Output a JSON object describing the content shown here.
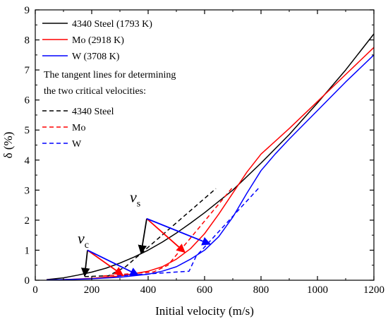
{
  "chart_data": {
    "type": "line",
    "xlabel": "Initial velocity (m/s)",
    "ylabel": "δ (%)",
    "xlim": [
      0,
      1200
    ],
    "ylim": [
      0,
      9
    ],
    "xticks": [
      0,
      200,
      400,
      600,
      800,
      1000,
      1200
    ],
    "yticks": [
      0,
      1,
      2,
      3,
      4,
      5,
      6,
      7,
      8,
      9
    ],
    "grid": false,
    "legend_position": "top-left",
    "colors": {
      "steel": "#000000",
      "mo": "#ff0000",
      "w": "#0000ff",
      "arrow_red": "#ff0000",
      "arrow_blue": "#0000ff"
    },
    "series": [
      {
        "name": "4340 Steel (1793 K)",
        "color": "#000000",
        "dash": "solid",
        "x": [
          40,
          100,
          150,
          200,
          250,
          300,
          350,
          400,
          450,
          500,
          550,
          600,
          700,
          800,
          900,
          1000,
          1100,
          1200
        ],
        "y": [
          0.02,
          0.08,
          0.17,
          0.27,
          0.4,
          0.57,
          0.77,
          1.0,
          1.27,
          1.57,
          1.9,
          2.25,
          3.0,
          3.9,
          4.85,
          5.9,
          7.0,
          8.2
        ]
      },
      {
        "name": "Mo (2918 K)",
        "color": "#ff0000",
        "dash": "solid",
        "x": [
          40,
          100,
          200,
          300,
          400,
          450,
          500,
          550,
          600,
          650,
          700,
          750,
          800,
          900,
          1000,
          1100,
          1200
        ],
        "y": [
          0.01,
          0.02,
          0.06,
          0.14,
          0.3,
          0.45,
          0.7,
          1.05,
          1.55,
          2.2,
          2.9,
          3.6,
          4.2,
          5.05,
          5.95,
          6.85,
          7.75
        ]
      },
      {
        "name": "W (3708 K)",
        "color": "#0000ff",
        "dash": "solid",
        "x": [
          40,
          100,
          200,
          300,
          400,
          450,
          500,
          550,
          600,
          650,
          700,
          750,
          800,
          850,
          900,
          1000,
          1100,
          1200
        ],
        "y": [
          0.01,
          0.02,
          0.05,
          0.1,
          0.2,
          0.3,
          0.45,
          0.7,
          1.0,
          1.45,
          2.1,
          2.9,
          3.65,
          4.2,
          4.7,
          5.65,
          6.6,
          7.5
        ]
      },
      {
        "name": "4340 Steel",
        "color": "#000000",
        "dash": "dashed",
        "x": [
          175,
          260,
          320,
          640
        ],
        "y": [
          0.12,
          0.15,
          0.45,
          3.05
        ]
      },
      {
        "name": "Mo",
        "color": "#ff0000",
        "dash": "dashed",
        "x": [
          240,
          420,
          470,
          700
        ],
        "y": [
          0.14,
          0.28,
          0.5,
          3.1
        ]
      },
      {
        "name": "W",
        "color": "#0000ff",
        "dash": "dashed",
        "x": [
          290,
          545,
          570,
          795
        ],
        "y": [
          0.14,
          0.3,
          0.8,
          3.1
        ]
      }
    ],
    "legend": {
      "entries": [
        "4340 Steel (1793 K)",
        "Mo (2918 K)",
        "W (3708 K)"
      ],
      "note_line1": "The tangent lines for determining",
      "note_line2": "the two critical velocities:",
      "tangent_entries": [
        "4340 Steel",
        "Mo",
        "W"
      ]
    },
    "annotations": [
      {
        "symbol": "v",
        "subscript": "s",
        "label_x": 335,
        "label_y": 2.6,
        "arrows": [
          {
            "from": [
              395,
              2.05
            ],
            "to": [
              375,
              0.9
            ],
            "color": "#000000"
          },
          {
            "from": [
              395,
              2.05
            ],
            "to": [
              530,
              0.93
            ],
            "color": "#ff0000"
          },
          {
            "from": [
              395,
              2.05
            ],
            "to": [
              620,
              1.2
            ],
            "color": "#0000ff"
          }
        ]
      },
      {
        "symbol": "v",
        "subscript": "c",
        "label_x": 150,
        "label_y": 1.22,
        "arrows": [
          {
            "from": [
              185,
              1.0
            ],
            "to": [
              175,
              0.14
            ],
            "color": "#000000"
          },
          {
            "from": [
              185,
              1.0
            ],
            "to": [
              310,
              0.17
            ],
            "color": "#ff0000"
          },
          {
            "from": [
              185,
              1.0
            ],
            "to": [
              365,
              0.17
            ],
            "color": "#0000ff"
          }
        ]
      }
    ]
  }
}
